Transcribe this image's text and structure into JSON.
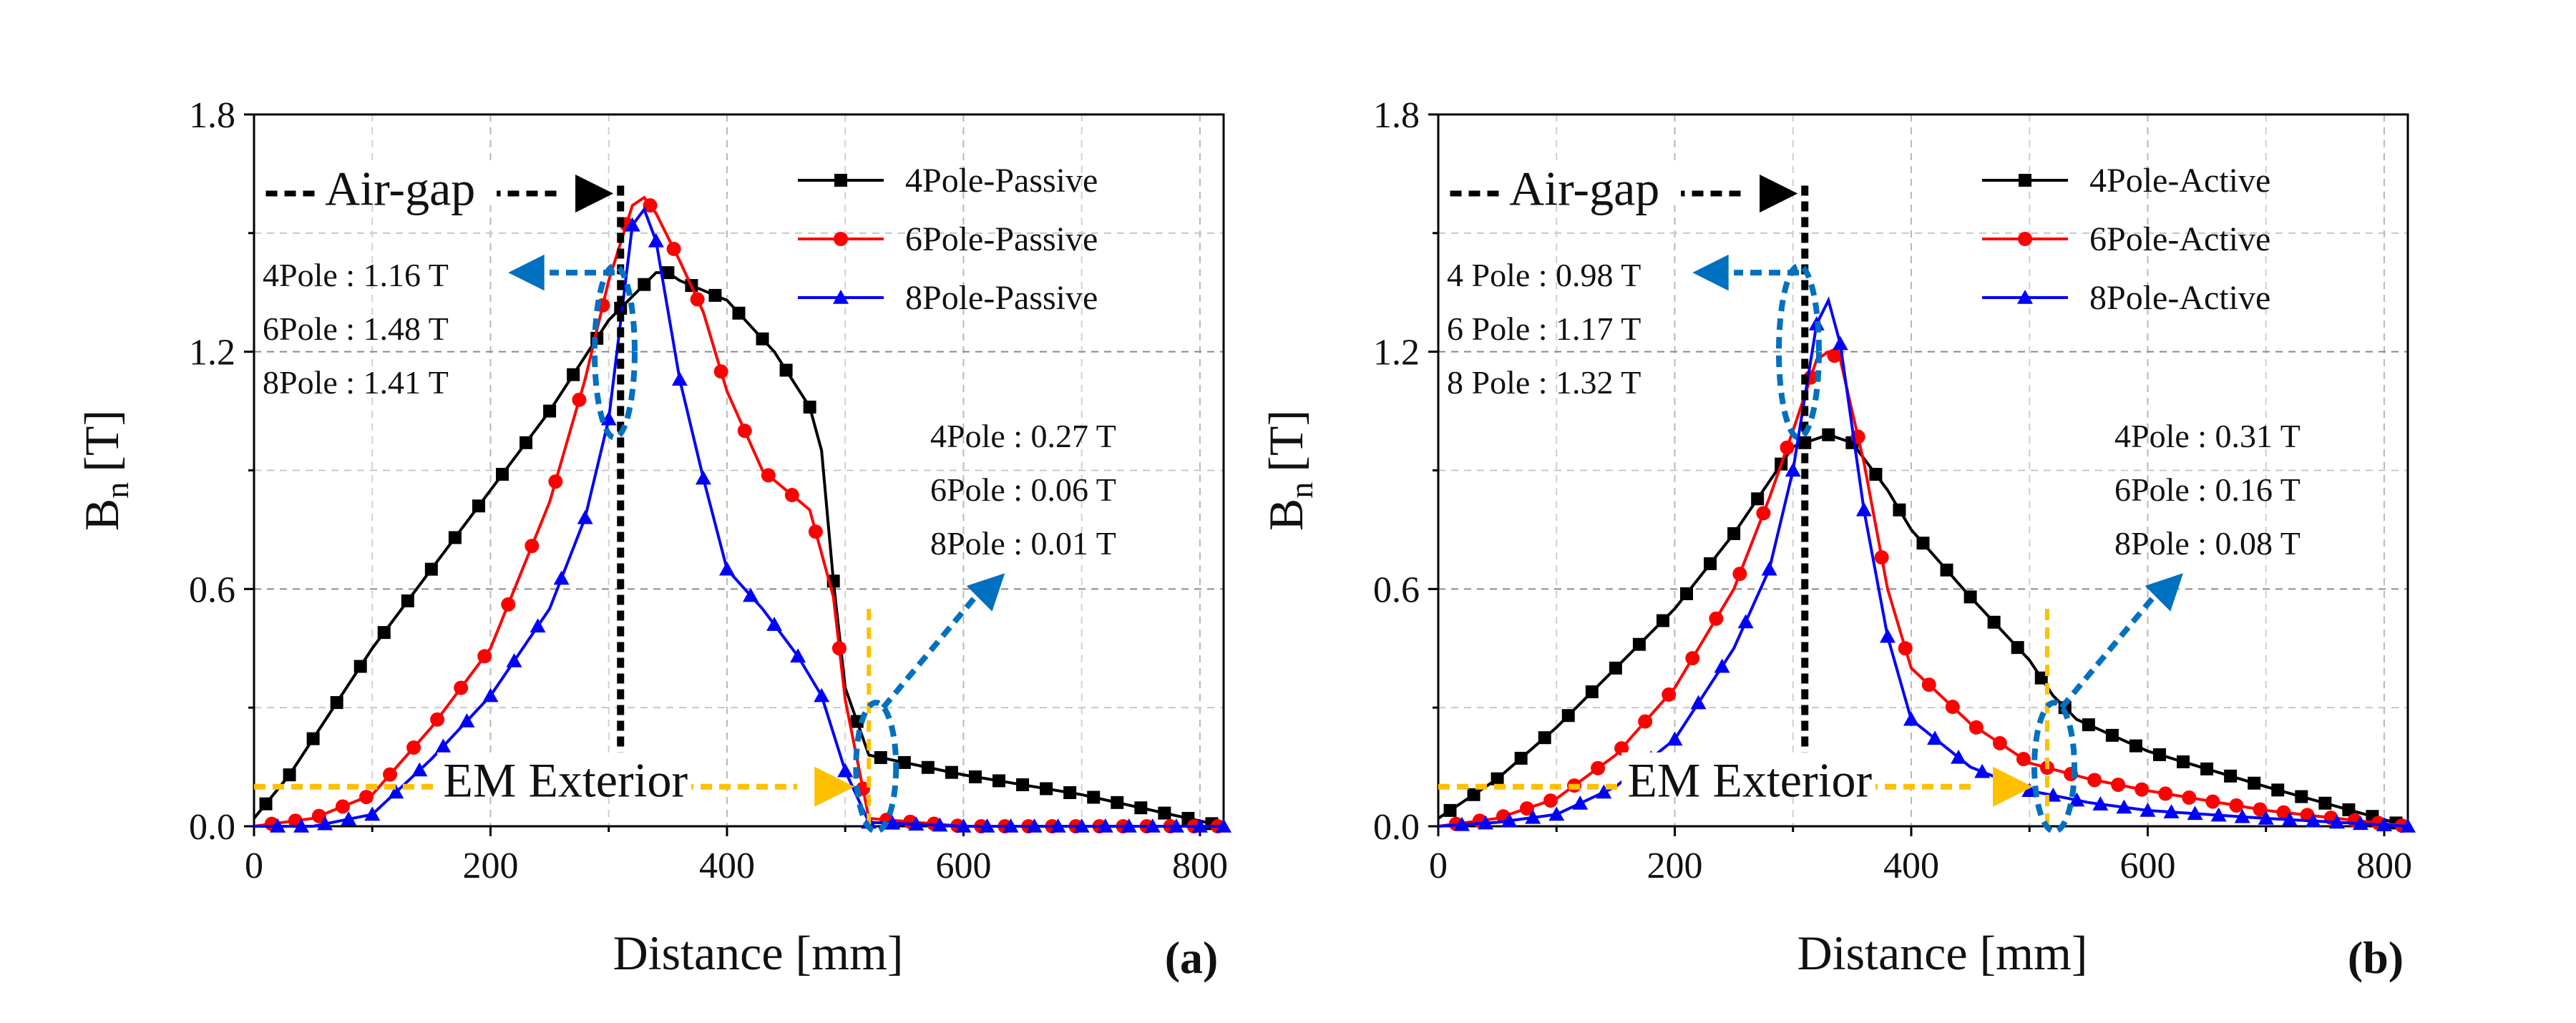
{
  "chart_data": [
    {
      "panel_label": "(a)",
      "type": "line",
      "xlabel": "Distance [mm]",
      "ylabel_main": "B",
      "ylabel_sub": "n",
      "ylabel_unit": "[T]",
      "xlim": [
        0,
        820
      ],
      "ylim": [
        0,
        1.8
      ],
      "xticks": [
        0,
        200,
        400,
        600,
        800
      ],
      "yticks": [
        0.0,
        0.6,
        1.2,
        1.8
      ],
      "ytick_labels": [
        "0.0",
        "0.6",
        "1.2",
        "1.8"
      ],
      "grid": true,
      "legend_position": "top-right",
      "colors": {
        "4pole": "#000000",
        "6pole": "#ff0000",
        "8pole": "#0000ff",
        "airgap": "#000000",
        "exterior": "#ffc000",
        "callout": "#0070c0"
      },
      "series": [
        {
          "name": "4Pole-Passive",
          "marker": "square",
          "x": [
            0,
            30,
            100,
            200,
            250,
            300,
            340,
            350,
            360,
            400,
            440,
            470,
            480,
            490,
            500,
            520,
            600,
            700,
            820
          ],
          "y": [
            0.02,
            0.13,
            0.45,
            0.85,
            1.05,
            1.28,
            1.4,
            1.4,
            1.38,
            1.33,
            1.2,
            1.06,
            0.95,
            0.62,
            0.35,
            0.18,
            0.13,
            0.08,
            0.0
          ]
        },
        {
          "name": "6Pole-Passive",
          "marker": "circle",
          "x": [
            0,
            50,
            100,
            150,
            200,
            250,
            280,
            300,
            320,
            330,
            340,
            360,
            380,
            400,
            430,
            470,
            490,
            500,
            520,
            600,
            700,
            820
          ],
          "y": [
            0.0,
            0.02,
            0.08,
            0.25,
            0.45,
            0.82,
            1.13,
            1.38,
            1.57,
            1.59,
            1.55,
            1.43,
            1.3,
            1.1,
            0.9,
            0.8,
            0.58,
            0.32,
            0.02,
            0.0,
            0.0,
            0.0
          ]
        },
        {
          "name": "8Pole-Passive",
          "marker": "triangle",
          "x": [
            0,
            50,
            100,
            150,
            200,
            250,
            280,
            300,
            320,
            330,
            340,
            360,
            380,
            400,
            430,
            460,
            480,
            500,
            520,
            600,
            820
          ],
          "y": [
            0.0,
            0.0,
            0.03,
            0.17,
            0.33,
            0.55,
            0.78,
            1.03,
            1.52,
            1.56,
            1.48,
            1.13,
            0.88,
            0.65,
            0.55,
            0.43,
            0.33,
            0.14,
            0.01,
            0.0,
            0.0
          ]
        }
      ],
      "airgap": {
        "label": "Air-gap",
        "x": 310
      },
      "exterior": {
        "label": "EM Exterior",
        "x": 520
      },
      "airgap_values": [
        "4Pole : 1.16 T",
        "6Pole : 1.48 T",
        "8Pole : 1.41 T"
      ],
      "exterior_values": [
        "4Pole : 0.27 T",
        "6Pole : 0.06 T",
        "8Pole : 0.01 T"
      ]
    },
    {
      "panel_label": "(b)",
      "type": "line",
      "xlabel": "Distance [mm]",
      "ylabel_main": "B",
      "ylabel_sub": "n",
      "ylabel_unit": "[T]",
      "xlim": [
        0,
        820
      ],
      "ylim": [
        0,
        1.8
      ],
      "xticks": [
        0,
        200,
        400,
        600,
        800
      ],
      "yticks": [
        0.0,
        0.6,
        1.2,
        1.8
      ],
      "ytick_labels": [
        "0.0",
        "0.6",
        "1.2",
        "1.8"
      ],
      "grid": true,
      "legend_position": "top-right",
      "colors": {
        "4pole": "#000000",
        "6pole": "#ff0000",
        "8pole": "#0000ff",
        "airgap": "#000000",
        "exterior": "#ffc000",
        "callout": "#0070c0"
      },
      "series": [
        {
          "name": "4Pole-Active",
          "marker": "square",
          "x": [
            0,
            50,
            100,
            200,
            250,
            300,
            330,
            350,
            380,
            400,
            450,
            500,
            520,
            540,
            600,
            700,
            820
          ],
          "y": [
            0.02,
            0.12,
            0.25,
            0.55,
            0.74,
            0.96,
            0.99,
            0.97,
            0.85,
            0.75,
            0.58,
            0.42,
            0.33,
            0.27,
            0.19,
            0.1,
            0.0
          ]
        },
        {
          "name": "6Pole-Active",
          "marker": "circle",
          "x": [
            0,
            50,
            100,
            150,
            200,
            250,
            280,
            300,
            320,
            330,
            340,
            360,
            380,
            400,
            450,
            500,
            550,
            600,
            700,
            820
          ],
          "y": [
            0.0,
            0.02,
            0.07,
            0.18,
            0.35,
            0.6,
            0.83,
            1.0,
            1.18,
            1.2,
            1.18,
            0.92,
            0.6,
            0.4,
            0.26,
            0.16,
            0.12,
            0.09,
            0.04,
            0.0
          ]
        },
        {
          "name": "8Pole-Active",
          "marker": "triangle",
          "x": [
            0,
            50,
            100,
            150,
            200,
            250,
            280,
            300,
            320,
            330,
            340,
            360,
            380,
            400,
            450,
            500,
            550,
            600,
            700,
            820
          ],
          "y": [
            0.0,
            0.01,
            0.03,
            0.1,
            0.22,
            0.45,
            0.65,
            0.9,
            1.27,
            1.33,
            1.22,
            0.8,
            0.48,
            0.27,
            0.15,
            0.09,
            0.06,
            0.04,
            0.02,
            0.0
          ]
        }
      ],
      "airgap": {
        "label": "Air-gap",
        "x": 310
      },
      "exterior": {
        "label": "EM Exterior",
        "x": 515
      },
      "airgap_values": [
        "4 Pole : 0.98 T",
        "6 Pole : 1.17 T",
        "8 Pole : 1.32 T"
      ],
      "exterior_values": [
        "4Pole : 0.31 T",
        "6Pole : 0.16 T",
        "8Pole : 0.08 T"
      ]
    }
  ]
}
